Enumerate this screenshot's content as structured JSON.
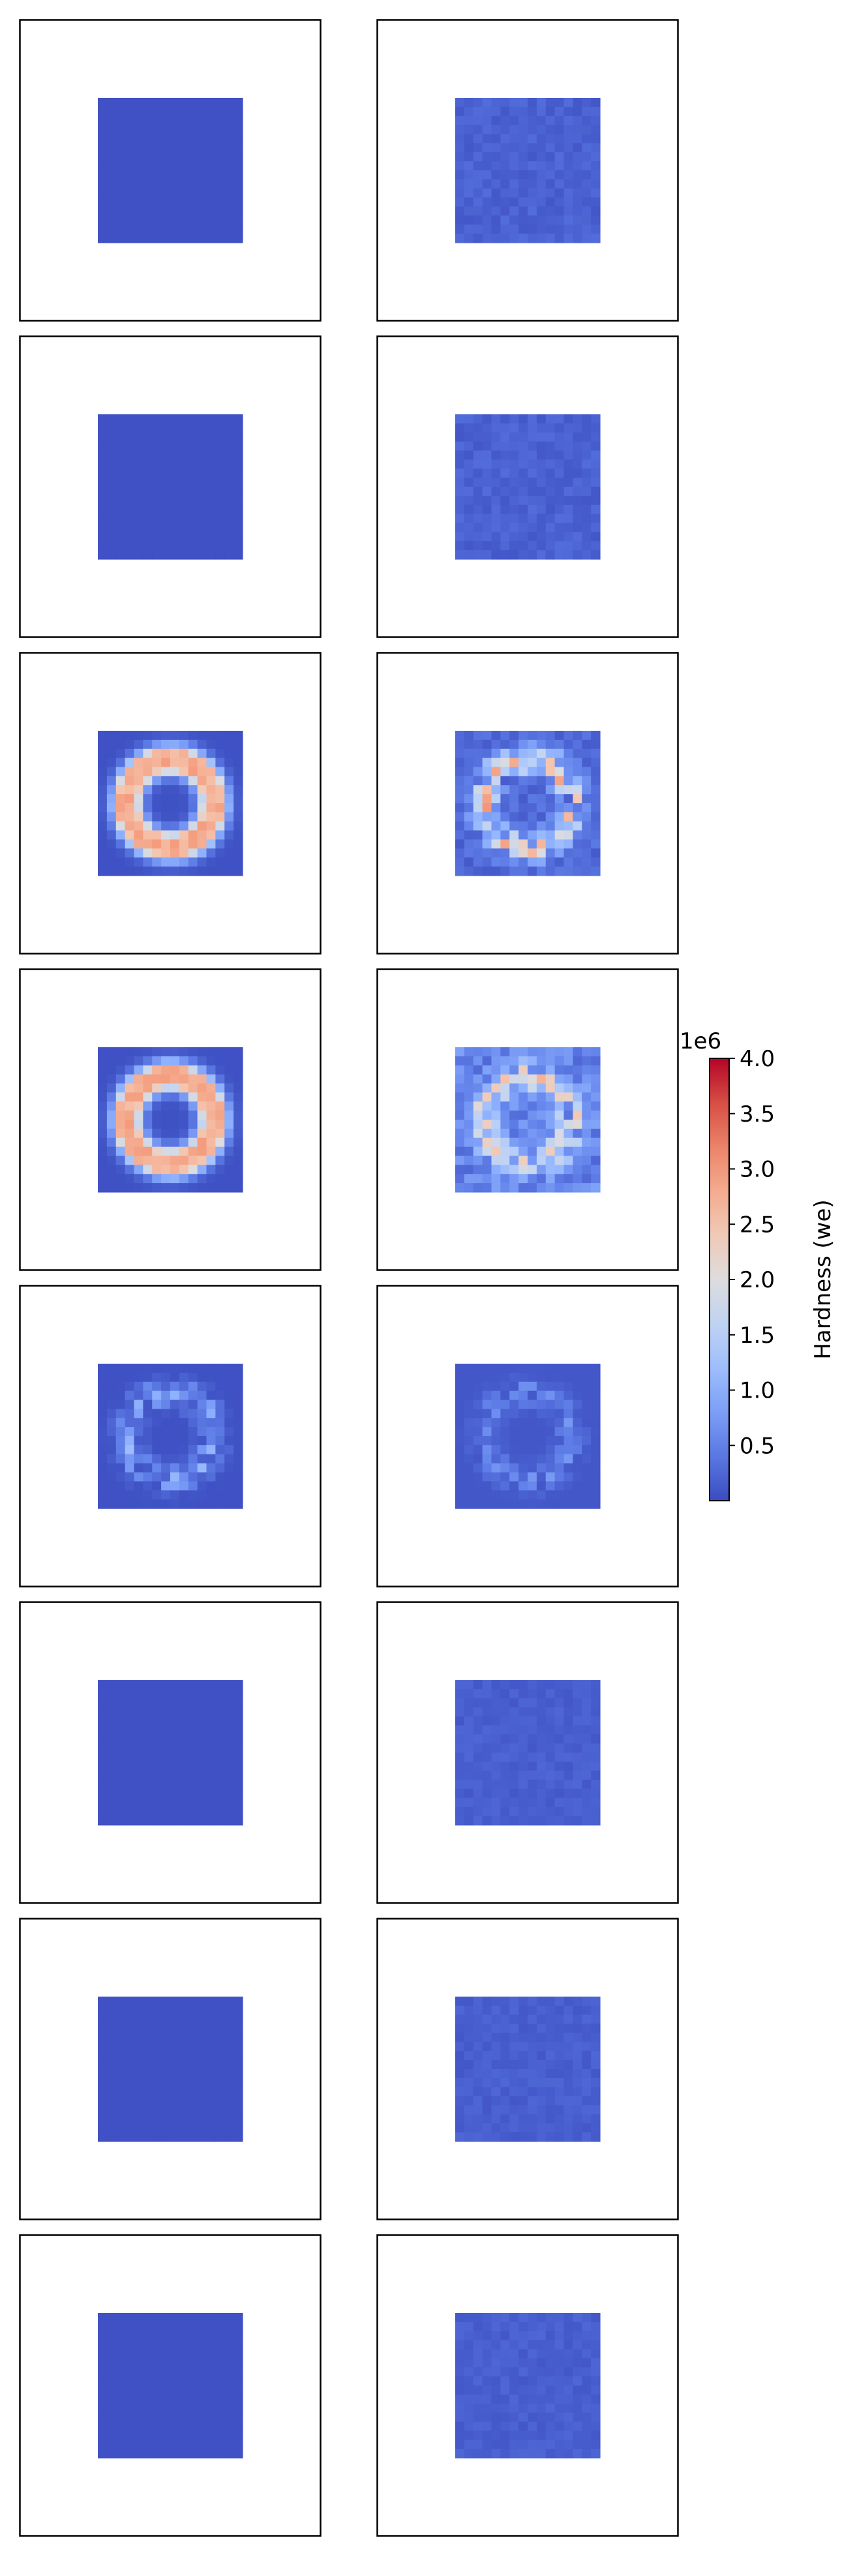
{
  "chart_data": {
    "type": "heatmap",
    "title": "",
    "layout": "grid",
    "grid": {
      "rows": 8,
      "columns": 2
    },
    "colormap": "coolwarm",
    "background_color": "#ffffff",
    "colorbar": {
      "label": "Hardness (we)",
      "scale_label": "1e6",
      "range": [
        0,
        4.0
      ],
      "ticks": [
        0.5,
        1.0,
        1.5,
        2.0,
        2.5,
        3.0,
        3.5,
        4.0
      ],
      "tick_labels": [
        "0.5",
        "1.0",
        "1.5",
        "2.0",
        "2.5",
        "3.0",
        "3.5",
        "4.0"
      ],
      "placement": "right"
    },
    "panels": [
      {
        "row": 1,
        "column": 1,
        "pattern": "uniform",
        "base": 0.05,
        "peak": 0.05
      },
      {
        "row": 1,
        "column": 2,
        "pattern": "speckled",
        "base": 0.1,
        "peak": 0.3
      },
      {
        "row": 2,
        "column": 1,
        "pattern": "uniform",
        "base": 0.05,
        "peak": 0.05
      },
      {
        "row": 2,
        "column": 2,
        "pattern": "speckled",
        "base": 0.1,
        "peak": 0.3
      },
      {
        "row": 3,
        "column": 1,
        "pattern": "ring",
        "base": 0.05,
        "peak": 3.0
      },
      {
        "row": 3,
        "column": 2,
        "pattern": "ring-speckled",
        "base": 0.3,
        "peak": 3.5
      },
      {
        "row": 4,
        "column": 1,
        "pattern": "ring",
        "base": 0.05,
        "peak": 3.0
      },
      {
        "row": 4,
        "column": 2,
        "pattern": "ring-speckled",
        "base": 0.6,
        "peak": 3.2
      },
      {
        "row": 5,
        "column": 1,
        "pattern": "ring-faint",
        "base": 0.05,
        "peak": 1.2
      },
      {
        "row": 5,
        "column": 2,
        "pattern": "ring-faint",
        "base": 0.1,
        "peak": 0.8
      },
      {
        "row": 6,
        "column": 1,
        "pattern": "uniform",
        "base": 0.05,
        "peak": 0.05
      },
      {
        "row": 6,
        "column": 2,
        "pattern": "speckled",
        "base": 0.1,
        "peak": 0.25
      },
      {
        "row": 7,
        "column": 1,
        "pattern": "uniform",
        "base": 0.05,
        "peak": 0.05
      },
      {
        "row": 7,
        "column": 2,
        "pattern": "speckled",
        "base": 0.1,
        "peak": 0.25
      },
      {
        "row": 8,
        "column": 1,
        "pattern": "uniform",
        "base": 0.05,
        "peak": 0.05
      },
      {
        "row": 8,
        "column": 2,
        "pattern": "speckled",
        "base": 0.1,
        "peak": 0.25
      }
    ]
  }
}
